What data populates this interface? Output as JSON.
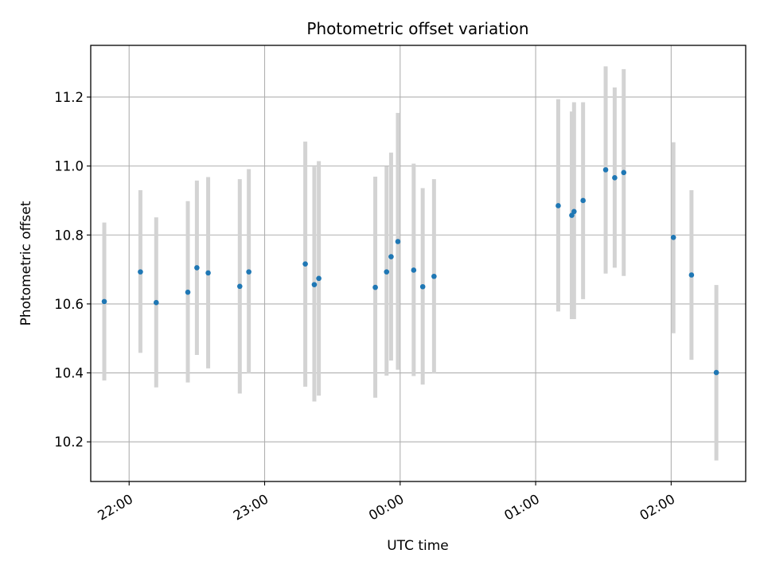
{
  "chart_data": {
    "type": "scatter",
    "title": "Photometric offset variation",
    "xlabel": "UTC time",
    "ylabel": "Photometric offset",
    "xlim": [
      "21:43",
      "02:33"
    ],
    "ylim": [
      10.085,
      11.35
    ],
    "x_ticks": [
      "22:00",
      "23:00",
      "00:00",
      "01:00",
      "02:00"
    ],
    "y_ticks": [
      10.2,
      10.4,
      10.6,
      10.8,
      11.0,
      11.2
    ],
    "y_tick_labels": [
      "10.2",
      "10.4",
      "10.6",
      "10.8",
      "11.0",
      "11.2"
    ],
    "grid": true,
    "marker_color": "#1f77b4",
    "errorbar_color": "#d3d3d3",
    "series": [
      {
        "x": [
          "21:49",
          "22:05",
          "22:12",
          "22:26",
          "22:30",
          "22:35",
          "22:49",
          "22:53",
          "23:18",
          "23:22",
          "23:24",
          "23:49",
          "23:54",
          "23:56",
          "23:59",
          "00:06",
          "00:10",
          "00:15",
          "01:10",
          "01:16",
          "01:17",
          "01:21",
          "01:31",
          "01:35",
          "01:39",
          "02:01",
          "02:09",
          "02:20"
        ],
        "y": [
          10.607,
          10.693,
          10.604,
          10.634,
          10.705,
          10.69,
          10.651,
          10.693,
          10.716,
          10.656,
          10.674,
          10.648,
          10.693,
          10.737,
          10.781,
          10.698,
          10.65,
          10.68,
          10.885,
          10.857,
          10.868,
          10.9,
          10.989,
          10.966,
          10.981,
          10.793,
          10.684,
          10.401
        ],
        "yerr_low": [
          10.378,
          10.458,
          10.358,
          10.372,
          10.452,
          10.413,
          10.34,
          10.398,
          10.36,
          10.317,
          10.334,
          10.328,
          10.392,
          10.436,
          10.409,
          10.391,
          10.366,
          10.398,
          10.578,
          10.556,
          10.556,
          10.614,
          10.688,
          10.705,
          10.681,
          10.515,
          10.438,
          10.146
        ],
        "yerr_high": [
          10.836,
          10.93,
          10.851,
          10.898,
          10.958,
          10.968,
          10.962,
          10.991,
          11.071,
          10.998,
          11.014,
          10.969,
          10.999,
          11.039,
          11.154,
          11.007,
          10.936,
          10.962,
          11.194,
          11.158,
          11.185,
          11.185,
          11.289,
          11.228,
          11.281,
          11.069,
          10.93,
          10.655
        ]
      }
    ]
  }
}
